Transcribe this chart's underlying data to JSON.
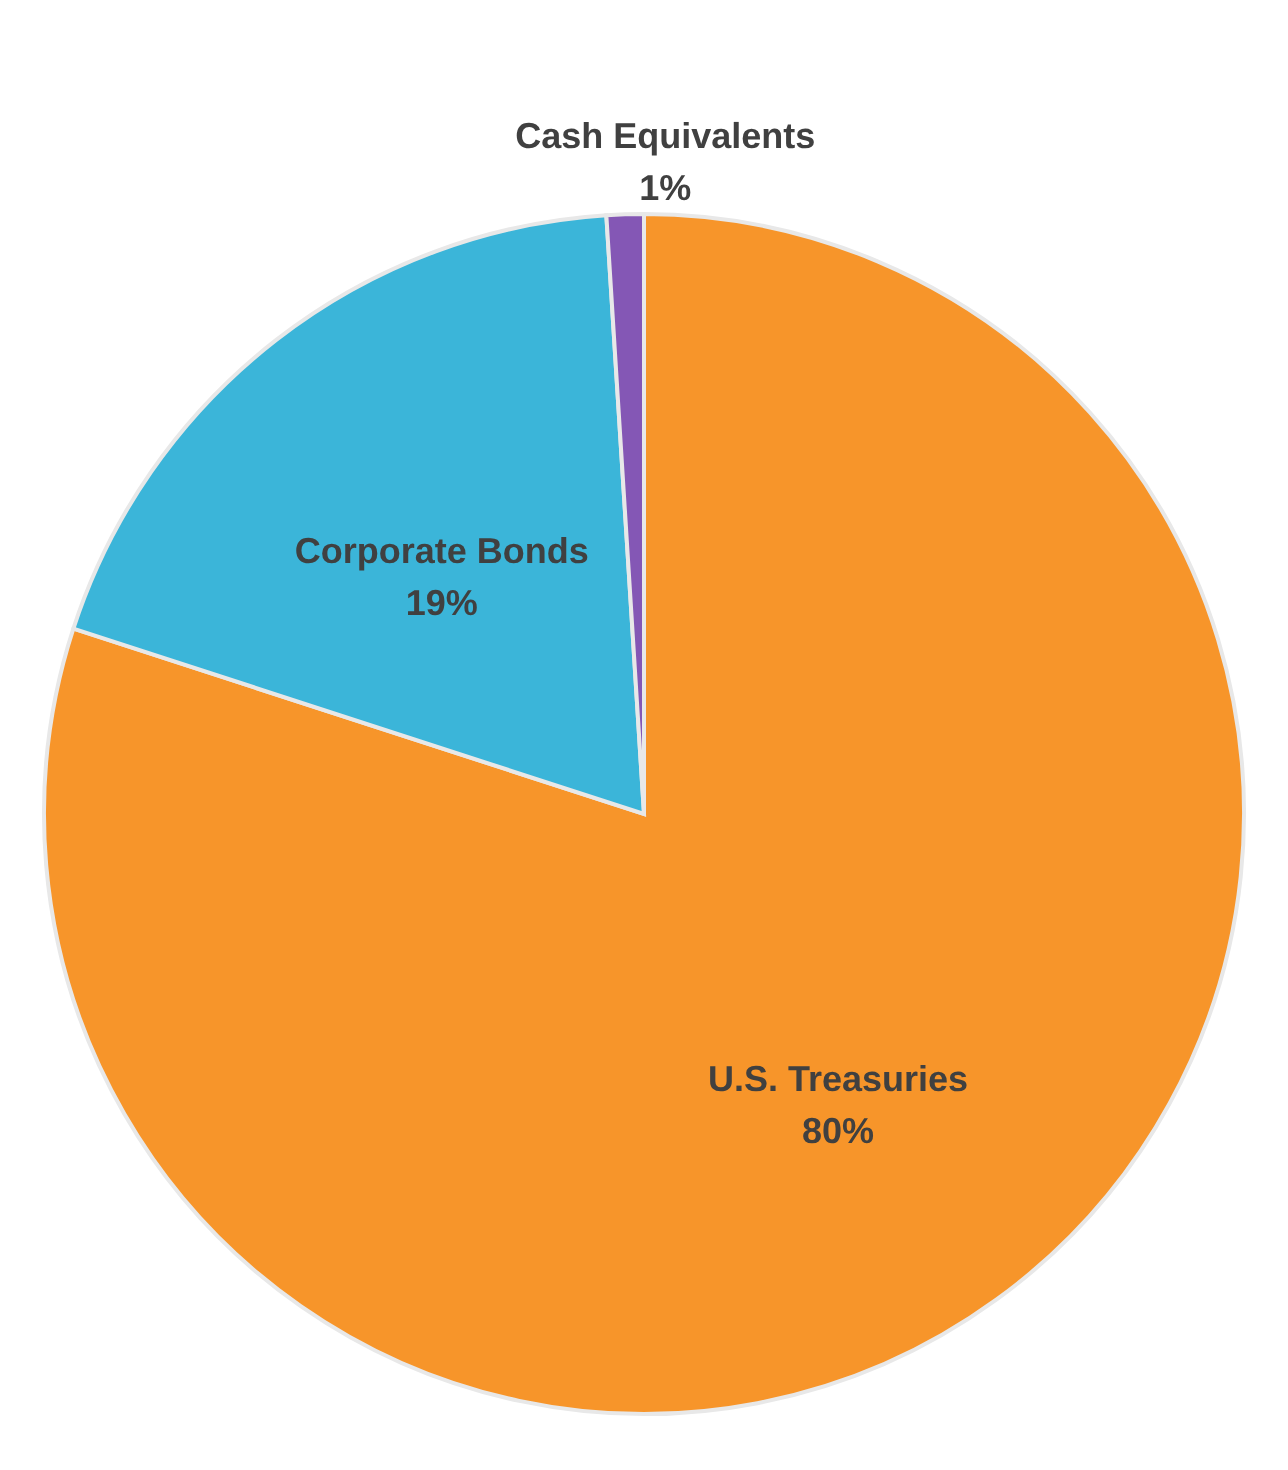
{
  "chart_data": {
    "type": "pie",
    "categories": [
      "U.S. Treasuries",
      "Corporate Bonds",
      "Cash Equivalents"
    ],
    "values": [
      80,
      19,
      1
    ],
    "colors": [
      "#f7952a",
      "#3bb5d9",
      "#8457b5"
    ],
    "value_labels": [
      "80%",
      "19%",
      "1%"
    ]
  }
}
